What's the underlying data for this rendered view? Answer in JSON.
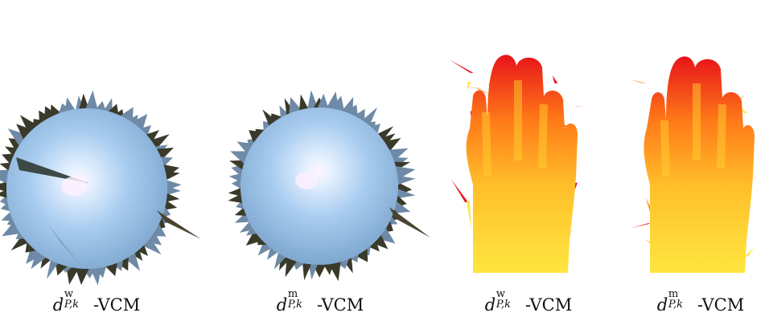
{
  "figure": {
    "panels": [
      {
        "shape": "sphere",
        "colormap": "light-blue",
        "caption": {
          "sup": "w",
          "sub": "P,k",
          "suffix": "-VCM"
        }
      },
      {
        "shape": "sphere",
        "colormap": "light-blue",
        "caption": {
          "sup": "m",
          "sub": "P,k",
          "suffix": "-VCM"
        }
      },
      {
        "shape": "hand",
        "colormap": "red-yellow",
        "caption": {
          "sup": "w",
          "sub": "P,k",
          "suffix": "-VCM"
        }
      },
      {
        "shape": "hand",
        "colormap": "red-yellow",
        "caption": {
          "sup": "m",
          "sub": "P,k",
          "suffix": "-VCM"
        }
      }
    ],
    "caption_symbol": "d",
    "colors": {
      "sphere_light": "#e8f2ff",
      "sphere_mid": "#a9cdf0",
      "sphere_dark": "#5a86b3",
      "spike_dark": "#3a3a2a",
      "hand_red": "#e8141a",
      "hand_orange": "#ff8a1a",
      "hand_yellow": "#ffe640"
    }
  }
}
